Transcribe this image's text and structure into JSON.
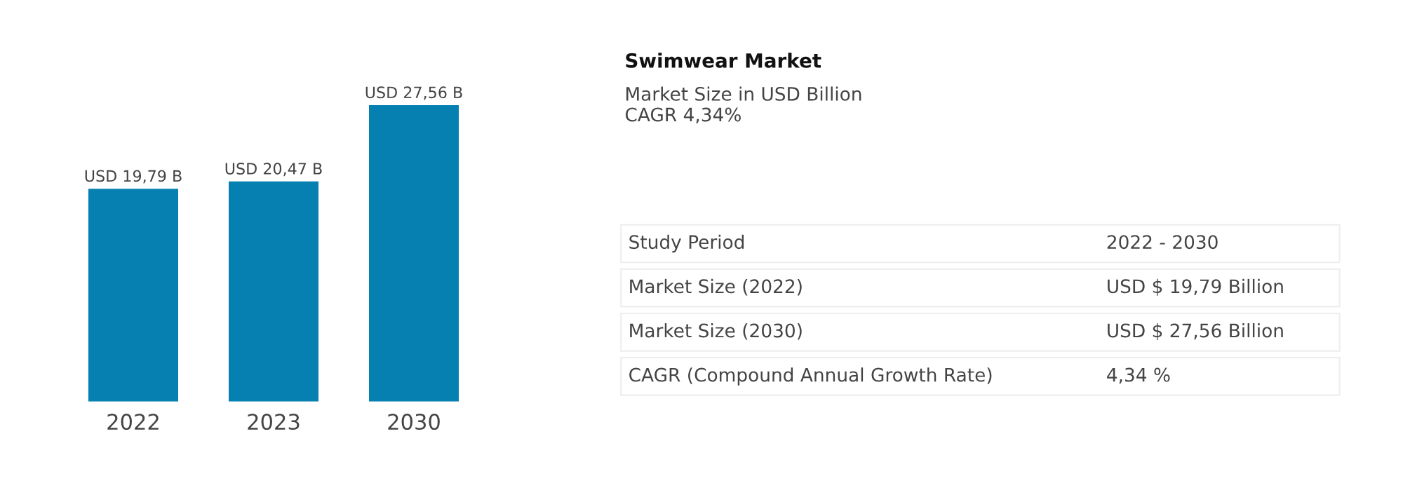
{
  "chart_data": [
    {
      "type": "bar",
      "categories": [
        "2022",
        "2023",
        "2030"
      ],
      "values": [
        19.79,
        20.47,
        27.56
      ],
      "color": "#0580b0",
      "value_labels": [
        "USD 19,79 B",
        "USD 20,47 B",
        "USD 27,56 B"
      ],
      "grid": false,
      "legend": false
    },
    {
      "type": "other",
      "title": "Swimwear Market",
      "subtitle": "Market Size in USD Billion\nCAGR 4,34%",
      "annotations": [
        "Study Period",
        "2022 - 2030",
        "Market Size (2022)",
        "USD $ 19,79 Billion",
        "Market Size (2030)",
        "USD $ 27,56 Billion",
        "CAGR (Compound Annual Growth Rate)",
        "4,34 %"
      ]
    }
  ]
}
